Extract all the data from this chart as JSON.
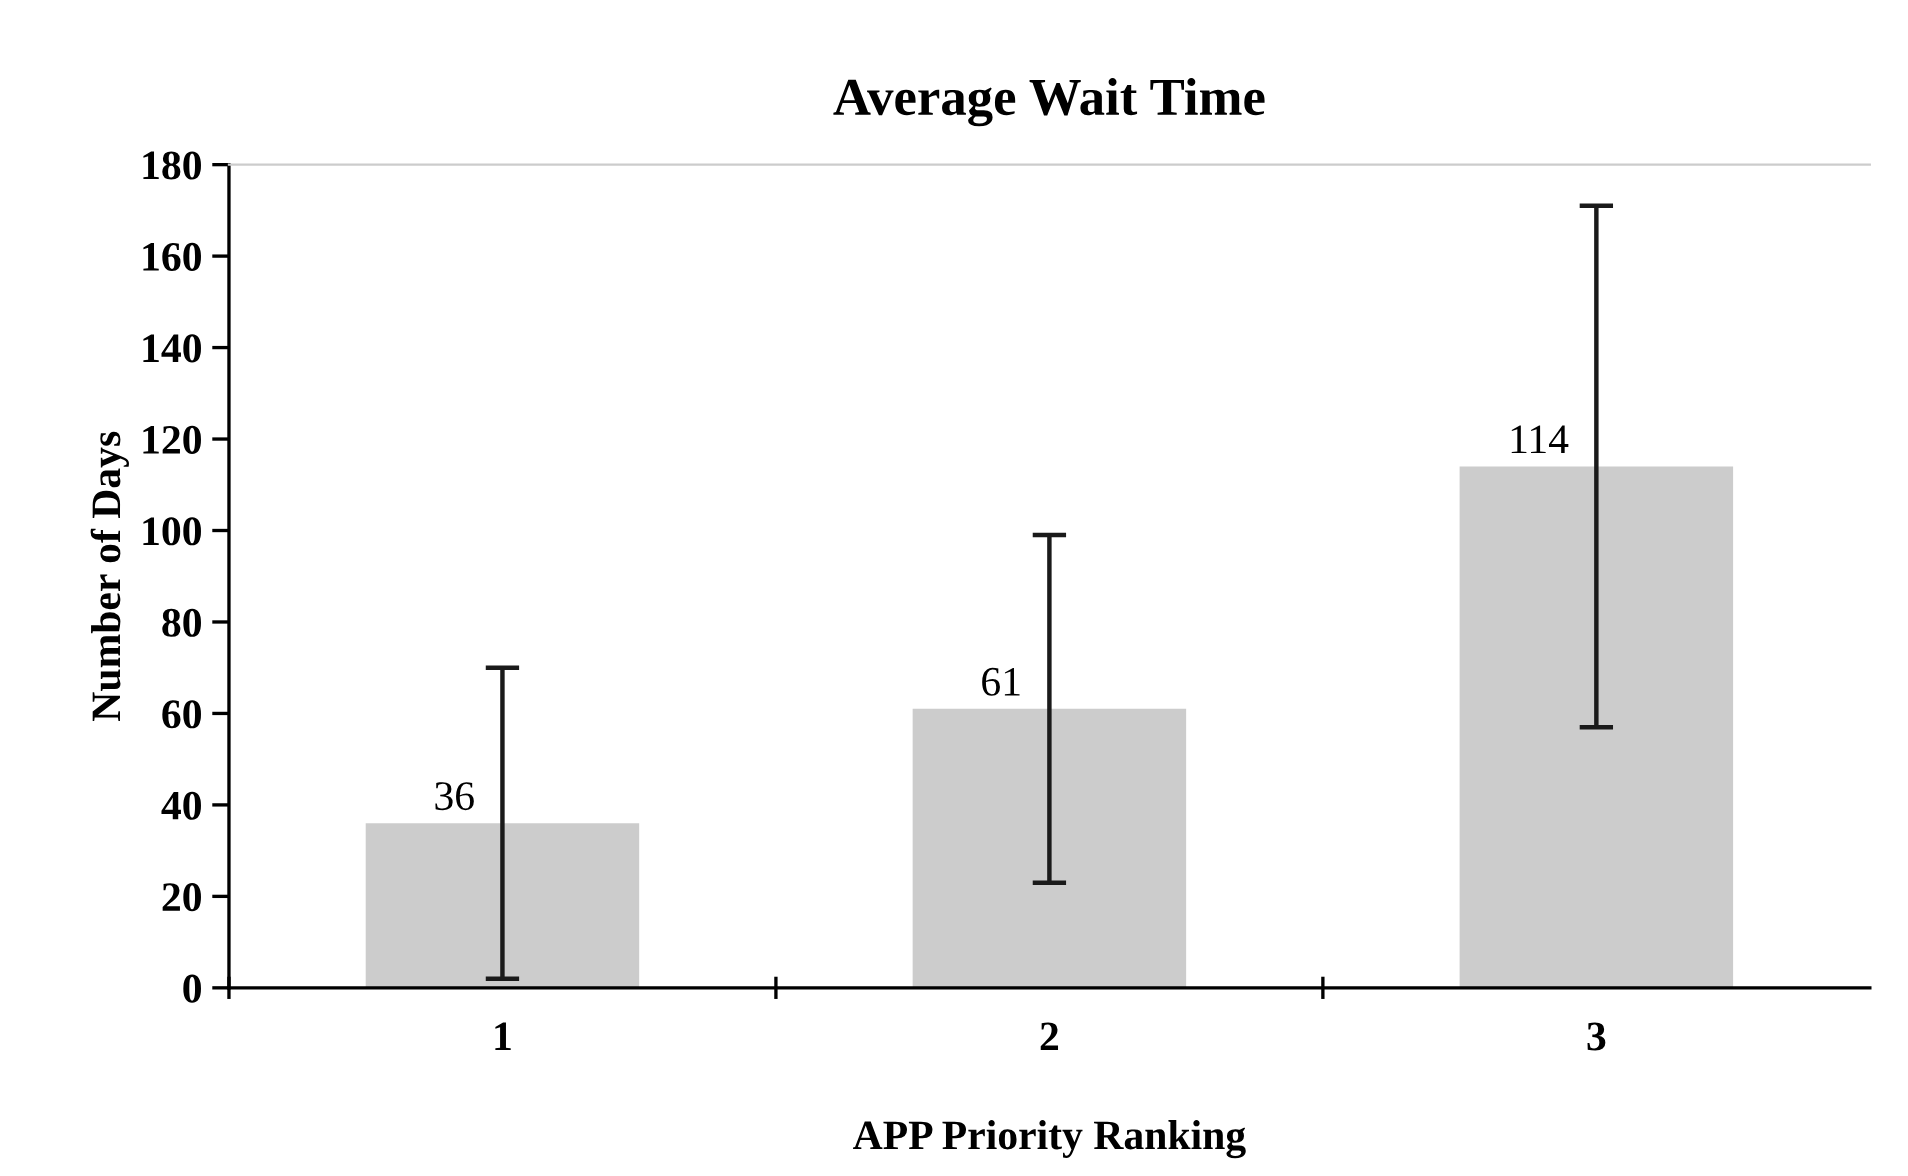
{
  "chart_data": {
    "type": "bar",
    "title": "Average Wait Time",
    "xlabel": "APP Priority Ranking",
    "ylabel": "Number of Days",
    "categories": [
      "1",
      "2",
      "3"
    ],
    "values": [
      36,
      61,
      114
    ],
    "errors": [
      34,
      38,
      57
    ],
    "color": "#cccccc",
    "data_labels": true,
    "ylim": [
      0,
      180
    ],
    "yticks": [
      0,
      20,
      40,
      60,
      80,
      100,
      120,
      140,
      160,
      180
    ],
    "grid": false,
    "legend": false
  }
}
